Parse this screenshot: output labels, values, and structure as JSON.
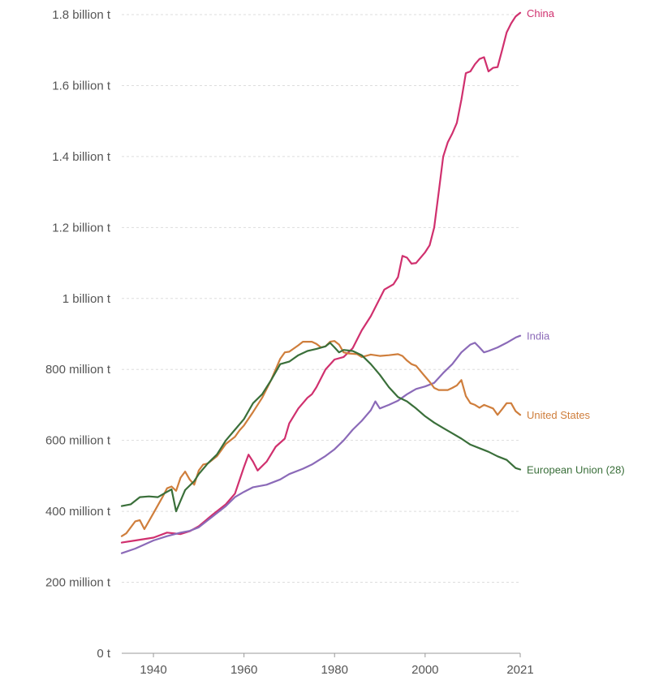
{
  "chart_data": {
    "type": "line",
    "title": "",
    "xlabel": "",
    "ylabel": "",
    "xlim": [
      1933,
      2021
    ],
    "ylim": [
      0,
      1800000000
    ],
    "y_ticks": [
      {
        "value": 0,
        "label": "0 t"
      },
      {
        "value": 200000000,
        "label": "200 million t"
      },
      {
        "value": 400000000,
        "label": "400 million t"
      },
      {
        "value": 600000000,
        "label": "600 million t"
      },
      {
        "value": 800000000,
        "label": "800 million t"
      },
      {
        "value": 1000000000,
        "label": "1 billion t"
      },
      {
        "value": 1200000000,
        "label": "1.2 billion t"
      },
      {
        "value": 1400000000,
        "label": "1.4 billion t"
      },
      {
        "value": 1600000000,
        "label": "1.6 billion t"
      },
      {
        "value": 1800000000,
        "label": "1.8 billion t"
      }
    ],
    "x_ticks": [
      {
        "value": 1940,
        "label": "1940"
      },
      {
        "value": 1960,
        "label": "1960"
      },
      {
        "value": 1980,
        "label": "1980"
      },
      {
        "value": 2000,
        "label": "2000"
      },
      {
        "value": 2021,
        "label": "2021"
      }
    ],
    "grid": true,
    "legend": "inline labels at line ends",
    "series": [
      {
        "name": "China",
        "color": "#d0306e",
        "points": [
          [
            1933,
            312000000
          ],
          [
            1936,
            318000000
          ],
          [
            1940,
            326000000
          ],
          [
            1943,
            340000000
          ],
          [
            1946,
            336000000
          ],
          [
            1948,
            344000000
          ],
          [
            1950,
            358000000
          ],
          [
            1953,
            390000000
          ],
          [
            1956,
            420000000
          ],
          [
            1958,
            450000000
          ],
          [
            1960,
            525000000
          ],
          [
            1961,
            560000000
          ],
          [
            1962,
            540000000
          ],
          [
            1963,
            515000000
          ],
          [
            1965,
            540000000
          ],
          [
            1967,
            582000000
          ],
          [
            1969,
            605000000
          ],
          [
            1970,
            648000000
          ],
          [
            1972,
            690000000
          ],
          [
            1974,
            720000000
          ],
          [
            1975,
            730000000
          ],
          [
            1976,
            750000000
          ],
          [
            1978,
            800000000
          ],
          [
            1980,
            828000000
          ],
          [
            1982,
            835000000
          ],
          [
            1984,
            860000000
          ],
          [
            1986,
            910000000
          ],
          [
            1988,
            950000000
          ],
          [
            1990,
            1000000000
          ],
          [
            1991,
            1025000000
          ],
          [
            1993,
            1040000000
          ],
          [
            1994,
            1060000000
          ],
          [
            1995,
            1120000000
          ],
          [
            1996,
            1115000000
          ],
          [
            1997,
            1098000000
          ],
          [
            1998,
            1100000000
          ],
          [
            2000,
            1130000000
          ],
          [
            2001,
            1150000000
          ],
          [
            2002,
            1200000000
          ],
          [
            2003,
            1300000000
          ],
          [
            2004,
            1400000000
          ],
          [
            2005,
            1440000000
          ],
          [
            2006,
            1465000000
          ],
          [
            2007,
            1495000000
          ],
          [
            2008,
            1560000000
          ],
          [
            2009,
            1635000000
          ],
          [
            2010,
            1640000000
          ],
          [
            2011,
            1660000000
          ],
          [
            2012,
            1675000000
          ],
          [
            2013,
            1680000000
          ],
          [
            2014,
            1640000000
          ],
          [
            2015,
            1650000000
          ],
          [
            2016,
            1652000000
          ],
          [
            2017,
            1700000000
          ],
          [
            2018,
            1750000000
          ],
          [
            2019,
            1775000000
          ],
          [
            2020,
            1795000000
          ],
          [
            2021,
            1805000000
          ]
        ]
      },
      {
        "name": "India",
        "color": "#8b6ab8",
        "points": [
          [
            1933,
            282000000
          ],
          [
            1936,
            295000000
          ],
          [
            1940,
            318000000
          ],
          [
            1943,
            330000000
          ],
          [
            1946,
            340000000
          ],
          [
            1948,
            345000000
          ],
          [
            1950,
            355000000
          ],
          [
            1953,
            385000000
          ],
          [
            1956,
            415000000
          ],
          [
            1958,
            440000000
          ],
          [
            1960,
            455000000
          ],
          [
            1962,
            468000000
          ],
          [
            1965,
            475000000
          ],
          [
            1968,
            490000000
          ],
          [
            1970,
            505000000
          ],
          [
            1973,
            520000000
          ],
          [
            1975,
            532000000
          ],
          [
            1978,
            556000000
          ],
          [
            1980,
            575000000
          ],
          [
            1982,
            600000000
          ],
          [
            1984,
            630000000
          ],
          [
            1986,
            655000000
          ],
          [
            1988,
            685000000
          ],
          [
            1989,
            710000000
          ],
          [
            1990,
            690000000
          ],
          [
            1992,
            700000000
          ],
          [
            1994,
            712000000
          ],
          [
            1996,
            730000000
          ],
          [
            1998,
            745000000
          ],
          [
            2000,
            752000000
          ],
          [
            2002,
            762000000
          ],
          [
            2004,
            790000000
          ],
          [
            2006,
            815000000
          ],
          [
            2008,
            848000000
          ],
          [
            2010,
            870000000
          ],
          [
            2011,
            875000000
          ],
          [
            2012,
            862000000
          ],
          [
            2013,
            848000000
          ],
          [
            2014,
            852000000
          ],
          [
            2016,
            862000000
          ],
          [
            2018,
            875000000
          ],
          [
            2020,
            890000000
          ],
          [
            2021,
            895000000
          ]
        ]
      },
      {
        "name": "United States",
        "color": "#cf7e3c",
        "points": [
          [
            1933,
            330000000
          ],
          [
            1934,
            338000000
          ],
          [
            1936,
            372000000
          ],
          [
            1937,
            375000000
          ],
          [
            1938,
            350000000
          ],
          [
            1940,
            395000000
          ],
          [
            1942,
            440000000
          ],
          [
            1943,
            465000000
          ],
          [
            1944,
            470000000
          ],
          [
            1945,
            458000000
          ],
          [
            1946,
            495000000
          ],
          [
            1947,
            512000000
          ],
          [
            1948,
            490000000
          ],
          [
            1949,
            475000000
          ],
          [
            1950,
            515000000
          ],
          [
            1951,
            532000000
          ],
          [
            1952,
            535000000
          ],
          [
            1954,
            555000000
          ],
          [
            1956,
            590000000
          ],
          [
            1958,
            610000000
          ],
          [
            1959,
            628000000
          ],
          [
            1960,
            642000000
          ],
          [
            1962,
            680000000
          ],
          [
            1964,
            720000000
          ],
          [
            1966,
            770000000
          ],
          [
            1968,
            830000000
          ],
          [
            1969,
            848000000
          ],
          [
            1970,
            850000000
          ],
          [
            1972,
            868000000
          ],
          [
            1973,
            878000000
          ],
          [
            1975,
            878000000
          ],
          [
            1976,
            872000000
          ],
          [
            1977,
            862000000
          ],
          [
            1978,
            865000000
          ],
          [
            1979,
            878000000
          ],
          [
            1980,
            880000000
          ],
          [
            1981,
            870000000
          ],
          [
            1982,
            848000000
          ],
          [
            1983,
            845000000
          ],
          [
            1985,
            843000000
          ],
          [
            1986,
            835000000
          ],
          [
            1988,
            842000000
          ],
          [
            1990,
            838000000
          ],
          [
            1992,
            840000000
          ],
          [
            1994,
            843000000
          ],
          [
            1995,
            838000000
          ],
          [
            1996,
            825000000
          ],
          [
            1997,
            815000000
          ],
          [
            1998,
            810000000
          ],
          [
            2000,
            780000000
          ],
          [
            2001,
            765000000
          ],
          [
            2002,
            748000000
          ],
          [
            2003,
            742000000
          ],
          [
            2005,
            742000000
          ],
          [
            2006,
            748000000
          ],
          [
            2007,
            755000000
          ],
          [
            2008,
            770000000
          ],
          [
            2009,
            725000000
          ],
          [
            2010,
            705000000
          ],
          [
            2011,
            700000000
          ],
          [
            2012,
            692000000
          ],
          [
            2013,
            700000000
          ],
          [
            2015,
            690000000
          ],
          [
            2016,
            672000000
          ],
          [
            2017,
            688000000
          ],
          [
            2018,
            705000000
          ],
          [
            2019,
            705000000
          ],
          [
            2020,
            682000000
          ],
          [
            2021,
            672000000
          ]
        ]
      },
      {
        "name": "European Union (28)",
        "color": "#3a6f3a",
        "points": [
          [
            1933,
            415000000
          ],
          [
            1935,
            420000000
          ],
          [
            1937,
            440000000
          ],
          [
            1939,
            442000000
          ],
          [
            1941,
            440000000
          ],
          [
            1943,
            455000000
          ],
          [
            1944,
            462000000
          ],
          [
            1945,
            400000000
          ],
          [
            1946,
            430000000
          ],
          [
            1947,
            460000000
          ],
          [
            1949,
            485000000
          ],
          [
            1950,
            505000000
          ],
          [
            1952,
            535000000
          ],
          [
            1954,
            560000000
          ],
          [
            1956,
            600000000
          ],
          [
            1958,
            630000000
          ],
          [
            1960,
            660000000
          ],
          [
            1962,
            705000000
          ],
          [
            1964,
            730000000
          ],
          [
            1966,
            770000000
          ],
          [
            1968,
            815000000
          ],
          [
            1970,
            822000000
          ],
          [
            1972,
            840000000
          ],
          [
            1974,
            852000000
          ],
          [
            1976,
            858000000
          ],
          [
            1978,
            865000000
          ],
          [
            1979,
            875000000
          ],
          [
            1980,
            862000000
          ],
          [
            1981,
            848000000
          ],
          [
            1982,
            855000000
          ],
          [
            1984,
            852000000
          ],
          [
            1986,
            840000000
          ],
          [
            1988,
            815000000
          ],
          [
            1990,
            785000000
          ],
          [
            1992,
            750000000
          ],
          [
            1994,
            722000000
          ],
          [
            1996,
            710000000
          ],
          [
            1998,
            690000000
          ],
          [
            2000,
            668000000
          ],
          [
            2002,
            650000000
          ],
          [
            2004,
            635000000
          ],
          [
            2006,
            620000000
          ],
          [
            2008,
            605000000
          ],
          [
            2010,
            588000000
          ],
          [
            2012,
            578000000
          ],
          [
            2014,
            568000000
          ],
          [
            2016,
            555000000
          ],
          [
            2018,
            545000000
          ],
          [
            2020,
            522000000
          ],
          [
            2021,
            518000000
          ]
        ]
      }
    ]
  }
}
